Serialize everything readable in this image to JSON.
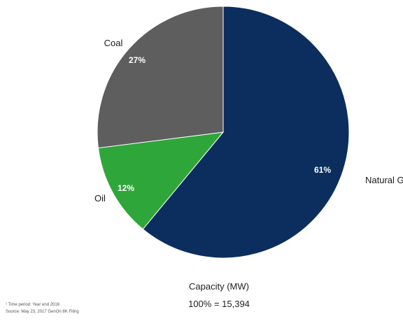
{
  "chart_data": {
    "type": "pie",
    "start_angle_deg": 0,
    "direction": "clockwise",
    "slices": [
      {
        "label": "Natural Gas",
        "value": 61,
        "value_label": "61%",
        "color": "#0b2e5e"
      },
      {
        "label": "Oil",
        "value": 12,
        "value_label": "12%",
        "color": "#2ea63a"
      },
      {
        "label": "Coal",
        "value": 27,
        "value_label": "27%",
        "color": "#5e5e5e"
      }
    ],
    "caption_line1": "Capacity (MW)",
    "caption_line2": "100% = 15,394"
  },
  "footnotes": {
    "line1": "¹ Time period: Year end 2016",
    "line2": "Source: May 23, 2017 GenOn 8K Filing"
  }
}
